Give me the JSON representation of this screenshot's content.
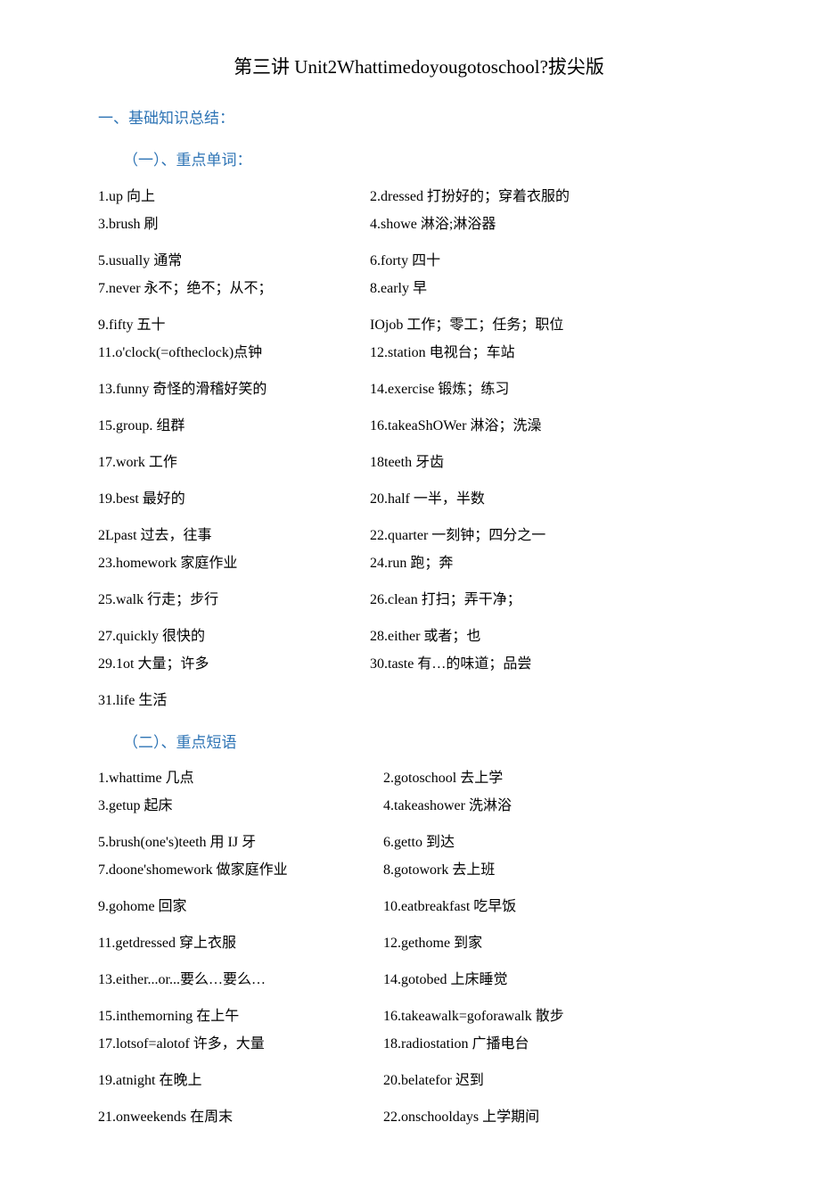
{
  "title": "第三讲 Unit2Whattimedoyougotoschool?拔尖版",
  "heading1": "一、基础知识总结：",
  "sub1": "（一）、重点单词：",
  "sub2": "（二）、重点短语",
  "words": {
    "r1l": "1.up 向上",
    "r1r": "2.dressed 打扮好的；穿着衣服的",
    "r2l": "3.brush 刷",
    "r2r": "4.showe 淋浴;淋浴器",
    "r3l": "5.usually 通常",
    "r3r": "6.forty    四十",
    "r4l": "7.never 永不；绝不；从不；",
    "r4r": "8.early 早",
    "r5l": "9.fifty 五十",
    "r5r": "IOjob 工作；零工；任务；职位",
    "r6l": "11.o'clock(=oftheclock)点钟",
    "r6r": "12.station 电视台；车站",
    "r7l": "13.funny 奇怪的滑稽好笑的",
    "r7r": "14.exercise 锻炼；练习",
    "r8l": "15.group. 组群",
    "r8r": "16.takeaShOWer 淋浴；洗澡",
    "r9l": "17.work 工作",
    "r9r": "18teeth 牙齿",
    "r10l": "19.best 最好的",
    "r10r": "20.half 一半，半数",
    "r11l": "2Lpast 过去，往事",
    "r11r": "22.quarter 一刻钟；四分之一",
    "r12l": "23.homework 家庭作业",
    "r12r": "24.run 跑；奔",
    "r13l": "25.walk 行走；步行",
    "r13r": "26.clean 打扫；弄干净；",
    "r14l": "27.quickly 很快的",
    "r14r": "28.either 或者；也",
    "r15l": "29.1ot 大量；许多",
    "r15r": "30.taste 有…的味道；品尝",
    "r16": "31.life    生活"
  },
  "phrases": {
    "p1l": "1.whattime 几点",
    "p1r": "2.gotoschool 去上学",
    "p2l": "3.getup 起床",
    "p2r": "4.takeashower 洗淋浴",
    "p3l": "5.brush(one's)teeth 用 IJ 牙",
    "p3r": "6.getto 到达",
    "p4l": "7.doone'shomework 做家庭作业",
    "p4r": "8.gotowork 去上班",
    "p5l": "9.gohome 回家",
    "p5r": "10.eatbreakfast 吃早饭",
    "p6l": "11.getdressed 穿上衣服",
    "p6r": "12.gethome 到家",
    "p7l": "13.either...or...要么…要么…",
    "p7r": "14.gotobed 上床睡觉",
    "p8l": "15.inthemorning 在上午",
    "p8r": "16.takeawalk=goforawalk 散步",
    "p9l": "17.lotsof=alotof 许多，大量",
    "p9r": "18.radiostation 广播电台",
    "p10l": "19.atnight 在晚上",
    "p10r": "20.belatefor 迟到",
    "p11l": "21.onweekends 在周末",
    "p11r": "22.onschooldays 上学期间"
  },
  "colors": {
    "heading": "#2e74b5",
    "text": "#000000",
    "background": "#ffffff"
  },
  "font_sizes": {
    "title": 21,
    "heading": 17,
    "body": 16
  }
}
